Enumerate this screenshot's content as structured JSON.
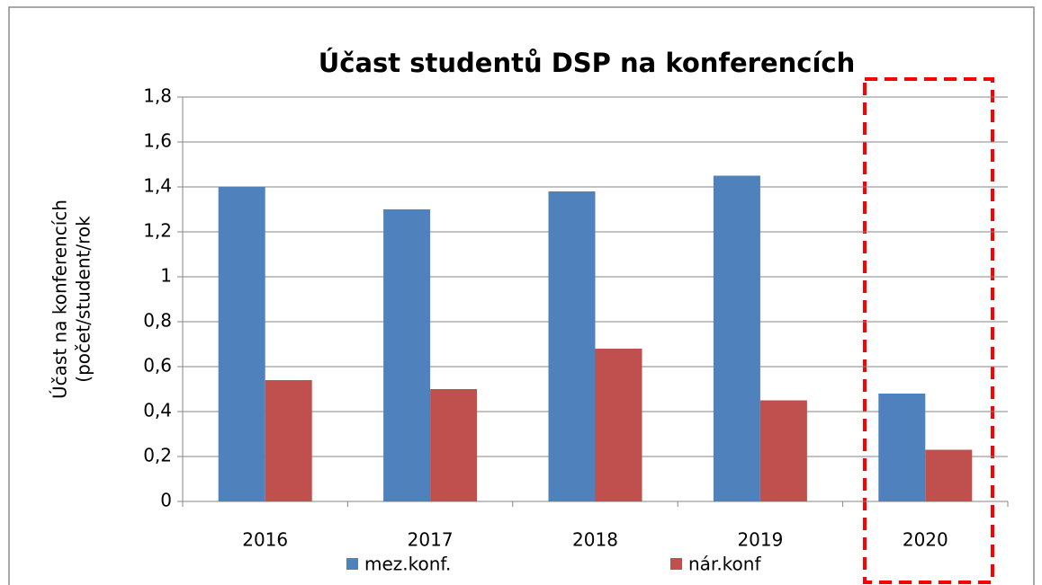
{
  "chart_data": {
    "type": "bar",
    "title": "Účast studentů DSP na konferencích",
    "ylabel": [
      "Účast na konferencích",
      "(počet/student/rok"
    ],
    "categories": [
      "2016",
      "2017",
      "2018",
      "2019",
      "2020"
    ],
    "series": [
      {
        "name": "mez.konf.",
        "color": "#4f81bd",
        "values": [
          1.4,
          1.3,
          1.38,
          1.45,
          0.48
        ]
      },
      {
        "name": "nár.konf",
        "color": "#c0504d",
        "values": [
          0.54,
          0.5,
          0.68,
          0.45,
          0.23
        ]
      }
    ],
    "ylim": [
      0,
      1.8
    ],
    "yticks": [
      0,
      {
        "value": 0.2,
        "label": "0,2"
      },
      {
        "value": 0.4,
        "label": "0,4"
      },
      {
        "value": 0.6,
        "label": "0,6"
      },
      {
        "value": 0.8,
        "label": "0,8"
      },
      1,
      {
        "value": 1.2,
        "label": "1,2"
      },
      {
        "value": 1.4,
        "label": "1,4"
      },
      {
        "value": 1.6,
        "label": "1,6"
      },
      {
        "value": 1.8,
        "label": "1,8"
      }
    ],
    "grid": true,
    "legend": "bottom"
  }
}
